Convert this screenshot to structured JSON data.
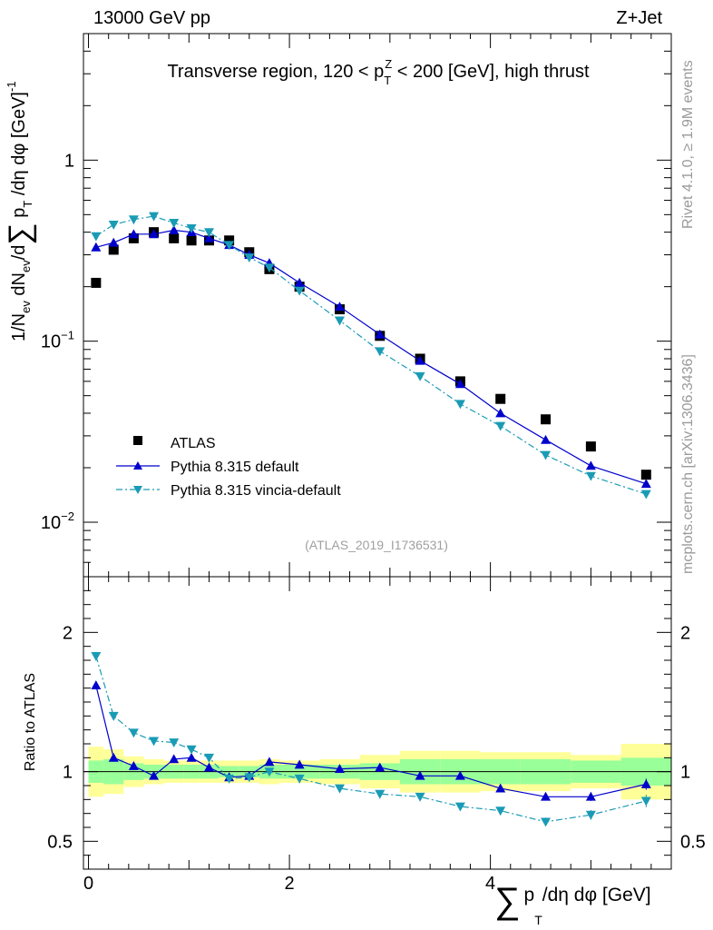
{
  "header": {
    "left": "13000 GeV pp",
    "right": "Z+Jet",
    "side_rivet": "Rivet 4.1.0, ≥ 1.9M events",
    "side_mcplots": "mcplots.cern.ch [arXiv:1306.3436]",
    "analysis_id": "(ATLAS_2019_I1736531)"
  },
  "colors": {
    "data": "#000000",
    "pythia_default": "#0000cc",
    "vincia": "#1a9bb5",
    "band_inner": "#99ff99",
    "band_outer": "#ffff99"
  },
  "chart_data": [
    {
      "type": "scatter",
      "panel": "main",
      "title": "Transverse region, 120 < p_T^Z < 200 [GeV], high thrust",
      "title_parts": {
        "pre": "Transverse region, 120 < p",
        "sub": "T",
        "sup": "Z",
        "post": " < 200 [GeV], high thrust"
      },
      "ylabel": "1/N_ev dN_ev/d∑p_T/dη dφ [GeV]^-1",
      "ylabel_parts": {
        "a": "1/N",
        "b": "ev",
        "c": " dN",
        "d": "ev",
        "e": "/d",
        "sum": "∑",
        "f": " p",
        "g": "T",
        "h": " /dη dφ  [GeV]",
        "i": "-1"
      },
      "yscale": "log",
      "ylim": [
        0.005,
        5.0
      ],
      "xlim": [
        -0.05,
        5.8
      ],
      "ytick_labels": {
        "major_1": "1",
        "major_01_base": "10",
        "major_01_exp": "−1",
        "major_001_base": "10",
        "major_001_exp": "−2"
      },
      "legend_position": "lower-left",
      "series": [
        {
          "name": "ATLAS",
          "style": "black-square",
          "x": [
            0.075,
            0.25,
            0.45,
            0.65,
            0.85,
            1.025,
            1.2,
            1.4,
            1.6,
            1.8,
            2.1,
            2.5,
            2.9,
            3.3,
            3.7,
            4.1,
            4.55,
            5.0,
            5.55
          ],
          "y": [
            0.21,
            0.32,
            0.37,
            0.4,
            0.37,
            0.36,
            0.36,
            0.36,
            0.31,
            0.25,
            0.2,
            0.15,
            0.107,
            0.08,
            0.06,
            0.048,
            0.037,
            0.0262,
            0.0183
          ]
        },
        {
          "name": "Pythia 8.315 default",
          "style": "blue-solid-triangle-up",
          "x": [
            0.075,
            0.25,
            0.45,
            0.65,
            0.85,
            1.025,
            1.2,
            1.4,
            1.6,
            1.8,
            2.1,
            2.5,
            2.9,
            3.3,
            3.7,
            4.1,
            4.55,
            5.0,
            5.55
          ],
          "y": [
            0.33,
            0.35,
            0.39,
            0.39,
            0.41,
            0.4,
            0.37,
            0.34,
            0.3,
            0.27,
            0.21,
            0.155,
            0.109,
            0.078,
            0.058,
            0.04,
            0.0285,
            0.0205,
            0.0163
          ]
        },
        {
          "name": "Pythia 8.315 vincia-default",
          "style": "teal-dashdot-triangle-down",
          "x": [
            0.075,
            0.25,
            0.45,
            0.65,
            0.85,
            1.025,
            1.2,
            1.4,
            1.6,
            1.8,
            2.1,
            2.5,
            2.9,
            3.3,
            3.7,
            4.1,
            4.55,
            5.0,
            5.55
          ],
          "y": [
            0.38,
            0.44,
            0.47,
            0.49,
            0.45,
            0.42,
            0.4,
            0.34,
            0.29,
            0.255,
            0.19,
            0.13,
            0.088,
            0.064,
            0.045,
            0.034,
            0.0235,
            0.018,
            0.0143
          ]
        }
      ]
    },
    {
      "type": "scatter",
      "panel": "ratio",
      "ylabel": "Ratio to ATLAS",
      "xlabel": "∑ p_T/dη dφ [GeV]",
      "xlabel_parts": {
        "sum": "∑",
        "p": "p",
        "sub": "T",
        "rest": "/dη dφ [GeV]"
      },
      "ylim": [
        0.3,
        2.4
      ],
      "xlim": [
        -0.05,
        5.8
      ],
      "xticks": [
        "0",
        "2",
        "4"
      ],
      "yticks": [
        "0.5",
        "1",
        "2"
      ],
      "reference_line": 1.0,
      "band_edges": [
        0,
        0.15,
        0.35,
        0.55,
        0.75,
        0.95,
        1.1,
        1.3,
        1.5,
        1.7,
        1.9,
        2.3,
        2.7,
        3.1,
        3.5,
        3.9,
        4.3,
        4.8,
        5.3,
        5.8
      ],
      "band_inner_half": [
        0.08,
        0.09,
        0.06,
        0.05,
        0.05,
        0.05,
        0.05,
        0.04,
        0.04,
        0.05,
        0.05,
        0.05,
        0.06,
        0.09,
        0.09,
        0.09,
        0.09,
        0.08,
        0.1
      ],
      "band_outer_half": [
        0.18,
        0.16,
        0.11,
        0.09,
        0.08,
        0.08,
        0.08,
        0.08,
        0.08,
        0.09,
        0.08,
        0.09,
        0.12,
        0.15,
        0.15,
        0.14,
        0.14,
        0.12,
        0.2
      ],
      "series": [
        {
          "name": "Pythia 8.315 default",
          "x": [
            0.075,
            0.25,
            0.45,
            0.65,
            0.85,
            1.025,
            1.2,
            1.4,
            1.6,
            1.8,
            2.1,
            2.5,
            2.9,
            3.3,
            3.7,
            4.1,
            4.55,
            5.0,
            5.55
          ],
          "y": [
            1.62,
            1.1,
            1.04,
            0.97,
            1.09,
            1.1,
            1.03,
            0.96,
            0.97,
            1.07,
            1.05,
            1.02,
            1.03,
            0.97,
            0.97,
            0.88,
            0.82,
            0.82,
            0.91
          ],
          "err": [
            0.03,
            0.02,
            0.015,
            0.015,
            0.015,
            0.015,
            0.015,
            0.015,
            0.015,
            0.015,
            0.015,
            0.015,
            0.015,
            0.015,
            0.015,
            0.02,
            0.025,
            0.03,
            0.04
          ]
        },
        {
          "name": "Pythia 8.315 vincia-default",
          "x": [
            0.075,
            0.25,
            0.45,
            0.65,
            0.85,
            1.025,
            1.2,
            1.4,
            1.6,
            1.8,
            2.1,
            2.5,
            2.9,
            3.3,
            3.7,
            4.1,
            4.55,
            5.0,
            5.55
          ],
          "y": [
            1.83,
            1.4,
            1.28,
            1.22,
            1.21,
            1.16,
            1.1,
            0.95,
            0.96,
            1.0,
            0.95,
            0.88,
            0.84,
            0.82,
            0.75,
            0.72,
            0.64,
            0.69,
            0.79
          ],
          "err": [
            0.03,
            0.02,
            0.015,
            0.015,
            0.015,
            0.015,
            0.015,
            0.015,
            0.015,
            0.015,
            0.015,
            0.015,
            0.015,
            0.02,
            0.02,
            0.025,
            0.03,
            0.035,
            0.045
          ]
        }
      ]
    }
  ]
}
